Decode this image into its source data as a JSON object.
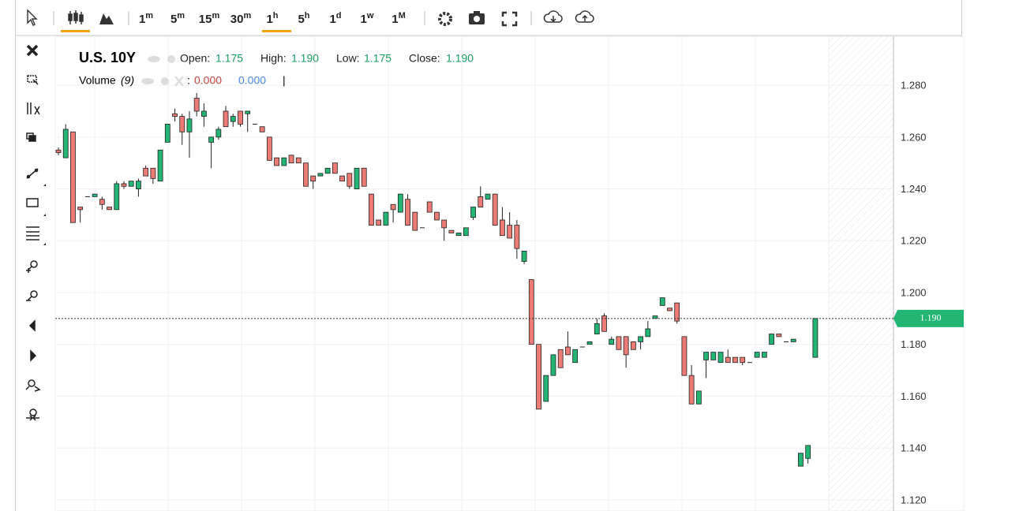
{
  "toolbar": {
    "intervals": [
      {
        "n": "1",
        "u": "m"
      },
      {
        "n": "5",
        "u": "m"
      },
      {
        "n": "15",
        "u": "m"
      },
      {
        "n": "30",
        "u": "m"
      },
      {
        "n": "1",
        "u": "h"
      },
      {
        "n": "5",
        "u": "h"
      },
      {
        "n": "1",
        "u": "d"
      },
      {
        "n": "1",
        "u": "w"
      },
      {
        "n": "1",
        "u": "M"
      }
    ]
  },
  "legend": {
    "symbol": "U.S. 10Y",
    "open_label": "Open:",
    "open": "1.175",
    "high_label": "High:",
    "high": "1.190",
    "low_label": "Low:",
    "low": "1.175",
    "close_label": "Close:",
    "close": "1.190",
    "volume_label": "Volume",
    "volume_param": "(9)",
    "volume_sep": ":",
    "volume_a": "0.000",
    "volume_b": "0.000",
    "cursor": "|"
  },
  "chart_data": {
    "type": "candlestick",
    "up_color": "#22b573",
    "down_color": "#ec7b76",
    "ylim": [
      1.1157,
      1.2989
    ],
    "yticks": [
      {
        "value": 1.28,
        "label": "1.280"
      },
      {
        "value": 1.26,
        "label": "1.260"
      },
      {
        "value": 1.24,
        "label": "1.240"
      },
      {
        "value": 1.22,
        "label": "1.220"
      },
      {
        "value": 1.2,
        "label": "1.200"
      },
      {
        "value": 1.18,
        "label": "1.180"
      },
      {
        "value": 1.16,
        "label": "1.160"
      },
      {
        "value": 1.14,
        "label": "1.140"
      },
      {
        "value": 1.12,
        "label": "1.120"
      }
    ],
    "last_price": {
      "value": 1.19,
      "label": "1.190"
    },
    "candles": [
      [
        1.255,
        1.256,
        1.253,
        1.254
      ],
      [
        1.252,
        1.265,
        1.252,
        1.263
      ],
      [
        1.262,
        1.262,
        1.227,
        1.227
      ],
      [
        1.233,
        1.233,
        1.227,
        1.232
      ],
      [
        1.237,
        1.237,
        1.237,
        1.237
      ],
      [
        1.237,
        1.238,
        1.237,
        1.238
      ],
      [
        1.236,
        1.237,
        1.232,
        1.234
      ],
      [
        1.233,
        1.233,
        1.232,
        1.232
      ],
      [
        1.232,
        1.243,
        1.232,
        1.242
      ],
      [
        1.242,
        1.243,
        1.24,
        1.241
      ],
      [
        1.241,
        1.243,
        1.241,
        1.243
      ],
      [
        1.24,
        1.244,
        1.237,
        1.243
      ],
      [
        1.248,
        1.249,
        1.245,
        1.245
      ],
      [
        1.248,
        1.248,
        1.242,
        1.244
      ],
      [
        1.243,
        1.255,
        1.243,
        1.255
      ],
      [
        1.258,
        1.265,
        1.258,
        1.265
      ],
      [
        1.269,
        1.271,
        1.266,
        1.268
      ],
      [
        1.268,
        1.269,
        1.257,
        1.262
      ],
      [
        1.262,
        1.27,
        1.252,
        1.267
      ],
      [
        1.275,
        1.277,
        1.268,
        1.27
      ],
      [
        1.268,
        1.273,
        1.264,
        1.27
      ],
      [
        1.258,
        1.26,
        1.248,
        1.26
      ],
      [
        1.26,
        1.264,
        1.259,
        1.263
      ],
      [
        1.27,
        1.272,
        1.264,
        1.264
      ],
      [
        1.266,
        1.269,
        1.264,
        1.268
      ],
      [
        1.27,
        1.27,
        1.264,
        1.265
      ],
      [
        1.269,
        1.27,
        1.262,
        1.27
      ],
      [
        1.265,
        1.265,
        1.265,
        1.265
      ],
      [
        1.264,
        1.264,
        1.262,
        1.262
      ],
      [
        1.26,
        1.26,
        1.251,
        1.251
      ],
      [
        1.252,
        1.252,
        1.249,
        1.249
      ],
      [
        1.249,
        1.252,
        1.249,
        1.252
      ],
      [
        1.253,
        1.253,
        1.25,
        1.25
      ],
      [
        1.252,
        1.252,
        1.25,
        1.25
      ],
      [
        1.25,
        1.25,
        1.241,
        1.241
      ],
      [
        1.245,
        1.245,
        1.24,
        1.243
      ],
      [
        1.245,
        1.246,
        1.245,
        1.246
      ],
      [
        1.246,
        1.248,
        1.246,
        1.248
      ],
      [
        1.25,
        1.25,
        1.246,
        1.246
      ],
      [
        1.245,
        1.245,
        1.243,
        1.243
      ],
      [
        1.246,
        1.246,
        1.24,
        1.241
      ],
      [
        1.24,
        1.248,
        1.24,
        1.248
      ],
      [
        1.248,
        1.248,
        1.241,
        1.241
      ],
      [
        1.238,
        1.238,
        1.226,
        1.226
      ],
      [
        1.228,
        1.228,
        1.226,
        1.226
      ],
      [
        1.226,
        1.231,
        1.226,
        1.231
      ],
      [
        1.234,
        1.234,
        1.227,
        1.232
      ],
      [
        1.231,
        1.238,
        1.231,
        1.238
      ],
      [
        1.236,
        1.238,
        1.226,
        1.226
      ],
      [
        1.231,
        1.231,
        1.224,
        1.224
      ],
      [
        1.225,
        1.225,
        1.225,
        1.225
      ],
      [
        1.235,
        1.235,
        1.231,
        1.231
      ],
      [
        1.231,
        1.231,
        1.228,
        1.228
      ],
      [
        1.228,
        1.228,
        1.22,
        1.225
      ],
      [
        1.224,
        1.224,
        1.223,
        1.223
      ],
      [
        1.222,
        1.223,
        1.222,
        1.223
      ],
      [
        1.222,
        1.225,
        1.222,
        1.225
      ],
      [
        1.229,
        1.233,
        1.228,
        1.233
      ],
      [
        1.237,
        1.241,
        1.233,
        1.233
      ],
      [
        1.236,
        1.238,
        1.236,
        1.238
      ],
      [
        1.238,
        1.238,
        1.226,
        1.226
      ],
      [
        1.228,
        1.233,
        1.222,
        1.222
      ],
      [
        1.226,
        1.231,
        1.221,
        1.221
      ],
      [
        1.226,
        1.228,
        1.213,
        1.217
      ],
      [
        1.212,
        1.216,
        1.211,
        1.216
      ],
      [
        1.205,
        1.205,
        1.18,
        1.18
      ],
      [
        1.18,
        1.18,
        1.155,
        1.155
      ],
      [
        1.158,
        1.168,
        1.158,
        1.168
      ],
      [
        1.168,
        1.176,
        1.168,
        1.176
      ],
      [
        1.178,
        1.178,
        1.171,
        1.171
      ],
      [
        1.179,
        1.185,
        1.176,
        1.176
      ],
      [
        1.173,
        1.178,
        1.173,
        1.178
      ],
      [
        1.179,
        1.179,
        1.179,
        1.179
      ],
      [
        1.18,
        1.181,
        1.18,
        1.181
      ],
      [
        1.184,
        1.19,
        1.184,
        1.188
      ],
      [
        1.191,
        1.192,
        1.185,
        1.185
      ],
      [
        1.18,
        1.183,
        1.18,
        1.182
      ],
      [
        1.183,
        1.183,
        1.178,
        1.178
      ],
      [
        1.183,
        1.183,
        1.171,
        1.176
      ],
      [
        1.181,
        1.181,
        1.178,
        1.178
      ],
      [
        1.181,
        1.183,
        1.178,
        1.183
      ],
      [
        1.183,
        1.189,
        1.183,
        1.186
      ],
      [
        1.19,
        1.191,
        1.19,
        1.191
      ],
      [
        1.195,
        1.198,
        1.195,
        1.198
      ],
      [
        1.194,
        1.194,
        1.193,
        1.193
      ],
      [
        1.196,
        1.196,
        1.188,
        1.189
      ],
      [
        1.183,
        1.183,
        1.168,
        1.168
      ],
      [
        1.168,
        1.172,
        1.157,
        1.157
      ],
      [
        1.157,
        1.162,
        1.157,
        1.162
      ],
      [
        1.174,
        1.177,
        1.167,
        1.177
      ],
      [
        1.174,
        1.177,
        1.174,
        1.177
      ],
      [
        1.173,
        1.177,
        1.173,
        1.177
      ],
      [
        1.175,
        1.178,
        1.173,
        1.173
      ],
      [
        1.175,
        1.175,
        1.173,
        1.173
      ],
      [
        1.175,
        1.175,
        1.172,
        1.173
      ],
      [
        1.173,
        1.173,
        1.173,
        1.173
      ],
      [
        1.175,
        1.177,
        1.175,
        1.177
      ],
      [
        1.175,
        1.177,
        1.175,
        1.177
      ],
      [
        1.18,
        1.184,
        1.18,
        1.184
      ],
      [
        1.184,
        1.184,
        1.183,
        1.183
      ],
      [
        1.181,
        1.181,
        1.181,
        1.181
      ],
      [
        1.181,
        1.182,
        1.181,
        1.182
      ],
      [
        1.133,
        1.138,
        1.133,
        1.138
      ],
      [
        1.136,
        1.141,
        1.134,
        1.141
      ],
      [
        1.175,
        1.19,
        1.175,
        1.19
      ]
    ]
  }
}
